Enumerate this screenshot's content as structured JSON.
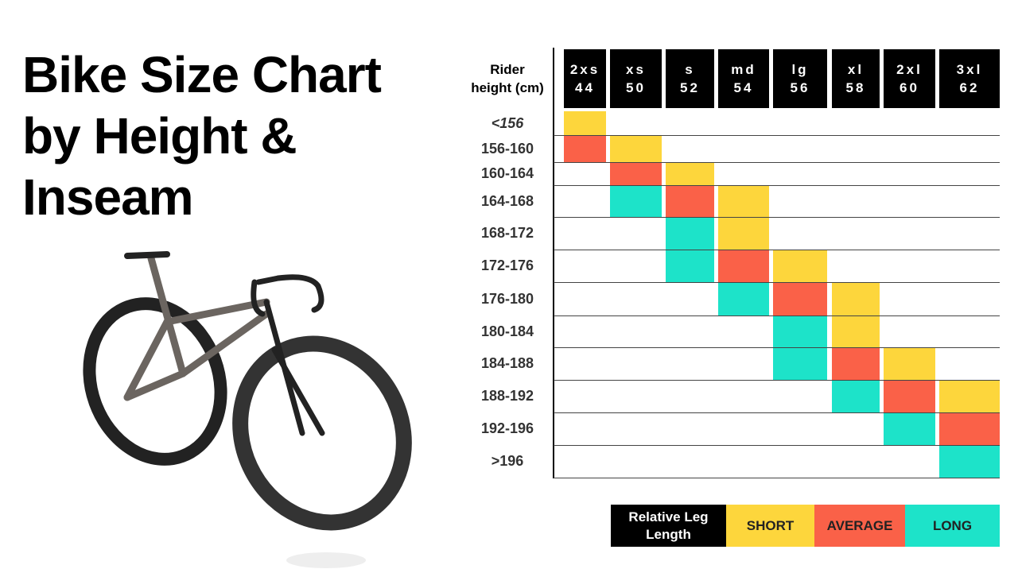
{
  "title_lines": [
    "Bike Size Chart",
    "by Height &",
    "Inseam"
  ],
  "table": {
    "row_header": "Rider height (cm)",
    "sizes": [
      {
        "label": "2xs",
        "frame": 44
      },
      {
        "label": "xs",
        "frame": 50
      },
      {
        "label": "s",
        "frame": 52
      },
      {
        "label": "md",
        "frame": 54
      },
      {
        "label": "lg",
        "frame": 56
      },
      {
        "label": "xl",
        "frame": 58
      },
      {
        "label": "2xl",
        "frame": 60
      },
      {
        "label": "3xl",
        "frame": 62
      }
    ],
    "rows": [
      {
        "height": "<156",
        "cells": [
          "short",
          null,
          null,
          null,
          null,
          null,
          null,
          null
        ]
      },
      {
        "height": "156-160",
        "cells": [
          "average",
          "short",
          null,
          null,
          null,
          null,
          null,
          null
        ]
      },
      {
        "height": "160-164",
        "cells": [
          null,
          "average",
          "short",
          null,
          null,
          null,
          null,
          null
        ]
      },
      {
        "height": "164-168",
        "cells": [
          null,
          "long",
          "average",
          "short",
          null,
          null,
          null,
          null
        ]
      },
      {
        "height": "168-172",
        "cells": [
          null,
          null,
          "long",
          "short",
          null,
          null,
          null,
          null
        ]
      },
      {
        "height": "172-176",
        "cells": [
          null,
          null,
          "long",
          "average",
          "short",
          null,
          null,
          null
        ]
      },
      {
        "height": "176-180",
        "cells": [
          null,
          null,
          null,
          "long",
          "average",
          "short",
          null,
          null
        ]
      },
      {
        "height": "180-184",
        "cells": [
          null,
          null,
          null,
          null,
          "long",
          "short",
          null,
          null
        ]
      },
      {
        "height": "184-188",
        "cells": [
          null,
          null,
          null,
          null,
          "long",
          "average",
          "short",
          null
        ]
      },
      {
        "height": "188-192",
        "cells": [
          null,
          null,
          null,
          null,
          null,
          "long",
          "average",
          "short"
        ]
      },
      {
        "height": "192-196",
        "cells": [
          null,
          null,
          null,
          null,
          null,
          null,
          "long",
          "average"
        ]
      },
      {
        "height": ">196",
        "cells": [
          null,
          null,
          null,
          null,
          null,
          null,
          null,
          "long"
        ]
      }
    ]
  },
  "legend": {
    "title": "Relative Leg Length",
    "items": [
      {
        "fit": "short",
        "label": "SHORT",
        "color": "#fdd63c"
      },
      {
        "fit": "average",
        "label": "AVERAGE",
        "color": "#fa6148"
      },
      {
        "fit": "long",
        "label": "LONG",
        "color": "#1de3c9"
      }
    ]
  }
}
